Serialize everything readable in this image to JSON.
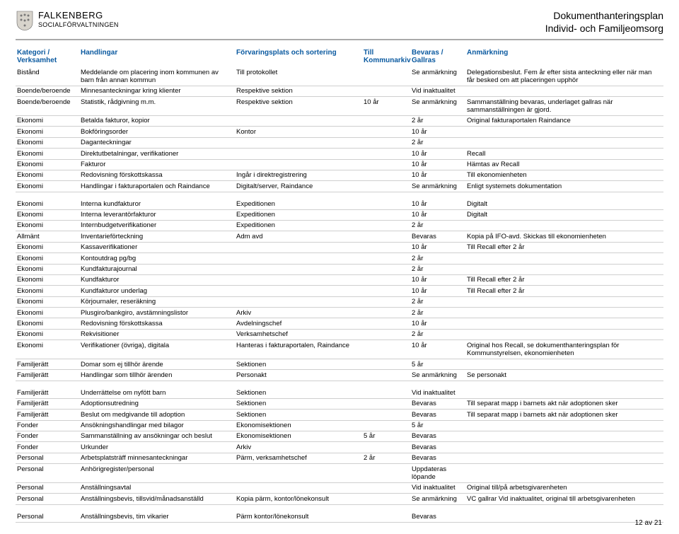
{
  "header": {
    "org_line1": "FALKENBERG",
    "org_line2": "SOCIALFÖRVALTNINGEN",
    "doc_title_line1": "Dokumenthanteringsplan",
    "doc_title_line2": "Individ- och Familjeomsorg"
  },
  "columns": {
    "c1a": "Kategori /",
    "c1b": "Verksamhet",
    "c2": "Handlingar",
    "c3": "Förvaringsplats och sortering",
    "c4a": "Till",
    "c4b": "Kommunarkiv",
    "c5a": "Bevaras /",
    "c5b": "Gallras",
    "c6": "Anmärkning"
  },
  "rows1": [
    {
      "c1": "Bistånd",
      "c2": "Meddelande om placering inom kommunen av barn från annan kommun",
      "c3": "Till protokollet",
      "c4": "",
      "c5": "Se anmärkning",
      "c6": "Delegationsbeslut. Fem år efter sista anteckning eller när man får besked om att placeringen upphör"
    },
    {
      "c1": "Boende/beroende",
      "c2": "Minnesanteckningar kring klienter",
      "c3": "Respektive sektion",
      "c4": "",
      "c5": "Vid inaktualitet",
      "c6": ""
    },
    {
      "c1": "Boende/beroende",
      "c2": "Statistik, rådgivning m.m.",
      "c3": "Respektive sektion",
      "c4": "10 år",
      "c5": "Se anmärkning",
      "c6": "Sammanställning bevaras, underlaget gallras när sammanställningen är gjord."
    },
    {
      "c1": "Ekonomi",
      "c2": "Betalda fakturor, kopior",
      "c3": "",
      "c4": "",
      "c5": "2 år",
      "c6": "Original fakturaportalen Raindance"
    },
    {
      "c1": "Ekonomi",
      "c2": "Bokföringsorder",
      "c3": "Kontor",
      "c4": "",
      "c5": "10 år",
      "c6": ""
    },
    {
      "c1": "Ekonomi",
      "c2": "Daganteckningar",
      "c3": "",
      "c4": "",
      "c5": "2 år",
      "c6": ""
    },
    {
      "c1": "Ekonomi",
      "c2": "Direktutbetalningar, verifikationer",
      "c3": "",
      "c4": "",
      "c5": "10 år",
      "c6": "Recall"
    },
    {
      "c1": "Ekonomi",
      "c2": "Fakturor",
      "c3": "",
      "c4": "",
      "c5": "10 år",
      "c6": "Hämtas av Recall"
    },
    {
      "c1": "Ekonomi",
      "c2": "Redovisning förskottskassa",
      "c3": "Ingår i direktregistrering",
      "c4": "",
      "c5": "10 år",
      "c6": "Till ekonomienheten"
    },
    {
      "c1": "Ekonomi",
      "c2": "Handlingar i fakturaportalen och Raindance",
      "c3": "Digitalt/server, Raindance",
      "c4": "",
      "c5": "Se anmärkning",
      "c6": "Enligt systemets dokumentation"
    }
  ],
  "rows2": [
    {
      "c1": "Ekonomi",
      "c2": "Interna kundfakturor",
      "c3": "Expeditionen",
      "c4": "",
      "c5": "10 år",
      "c6": "Digitalt"
    },
    {
      "c1": "Ekonomi",
      "c2": "Interna leverantörfakturor",
      "c3": "Expeditionen",
      "c4": "",
      "c5": "10 år",
      "c6": "Digitalt"
    },
    {
      "c1": "Ekonomi",
      "c2": "Internbudgetverifikationer",
      "c3": "Expeditionen",
      "c4": "",
      "c5": "2 år",
      "c6": ""
    },
    {
      "c1": "Allmänt",
      "c2": "Inventarieförteckning",
      "c3": "Adm avd",
      "c4": "",
      "c5": "Bevaras",
      "c6": "Kopia på IFO-avd. Skickas till ekonomienheten"
    },
    {
      "c1": "Ekonomi",
      "c2": "Kassaverifikationer",
      "c3": "",
      "c4": "",
      "c5": "10 år",
      "c6": "Till Recall efter 2 år"
    },
    {
      "c1": "Ekonomi",
      "c2": "Kontoutdrag pg/bg",
      "c3": "",
      "c4": "",
      "c5": "2 år",
      "c6": ""
    },
    {
      "c1": "Ekonomi",
      "c2": "Kundfakturajournal",
      "c3": "",
      "c4": "",
      "c5": "2 år",
      "c6": ""
    },
    {
      "c1": "Ekonomi",
      "c2": "Kundfakturor",
      "c3": "",
      "c4": "",
      "c5": "10 år",
      "c6": "Till Recall efter 2 år"
    },
    {
      "c1": "Ekonomi",
      "c2": "Kundfakturor underlag",
      "c3": "",
      "c4": "",
      "c5": "10 år",
      "c6": "Till Recall efter 2 år"
    },
    {
      "c1": "Ekonomi",
      "c2": "Körjournaler, reseräkning",
      "c3": "",
      "c4": "",
      "c5": "2 år",
      "c6": ""
    },
    {
      "c1": "Ekonomi",
      "c2": "Plusgiro/bankgiro, avstämningslistor",
      "c3": "Arkiv",
      "c4": "",
      "c5": "2 år",
      "c6": ""
    },
    {
      "c1": "Ekonomi",
      "c2": "Redovisning förskottskassa",
      "c3": "Avdelningschef",
      "c4": "",
      "c5": "10 år",
      "c6": ""
    },
    {
      "c1": "Ekonomi",
      "c2": "Rekvisitioner",
      "c3": "Verksamhetschef",
      "c4": "",
      "c5": "2 år",
      "c6": ""
    },
    {
      "c1": "Ekonomi",
      "c2": "Verifikationer (övriga), digitala",
      "c3": "Hanteras i fakturaportalen, Raindance",
      "c4": "",
      "c5": "10 år",
      "c6": "Original hos Recall, se dokumenthanteringsplan för Kommunstyrelsen, ekonomienheten"
    },
    {
      "c1": "Familjerätt",
      "c2": "Domar som ej tillhör ärende",
      "c3": "Sektionen",
      "c4": "",
      "c5": "5 år",
      "c6": ""
    },
    {
      "c1": "Familjerätt",
      "c2": "Handlingar som tillhör ärenden",
      "c3": "Personakt",
      "c4": "",
      "c5": "Se anmärkning",
      "c6": "Se personakt"
    }
  ],
  "rows3": [
    {
      "c1": "Familjerätt",
      "c2": "Underrättelse om nyfött barn",
      "c3": "Sektionen",
      "c4": "",
      "c5": "Vid inaktualitet",
      "c6": ""
    },
    {
      "c1": "Familjerätt",
      "c2": "Adoptionsutredning",
      "c3": "Sektionen",
      "c4": "",
      "c5": "Bevaras",
      "c6": "Till separat mapp i barnets akt när adoptionen sker"
    },
    {
      "c1": "Familjerätt",
      "c2": "Beslut om medgivande till adoption",
      "c3": "Sektionen",
      "c4": "",
      "c5": "Bevaras",
      "c6": "Till separat mapp i barnets akt när adoptionen sker"
    },
    {
      "c1": "Fonder",
      "c2": "Ansökningshandlingar med bilagor",
      "c3": "Ekonomisektionen",
      "c4": "",
      "c5": "5 år",
      "c6": ""
    },
    {
      "c1": "Fonder",
      "c2": "Sammanställning av ansökningar och beslut",
      "c3": "Ekonomisektionen",
      "c4": "5 år",
      "c5": "Bevaras",
      "c6": ""
    },
    {
      "c1": "Fonder",
      "c2": "Urkunder",
      "c3": "Arkiv",
      "c4": "",
      "c5": "Bevaras",
      "c6": ""
    },
    {
      "c1": "Personal",
      "c2": "Arbetsplatsträff minnesanteckningar",
      "c3": "Pärm, verksamhetschef",
      "c4": "2 år",
      "c5": "Bevaras",
      "c6": ""
    },
    {
      "c1": "Personal",
      "c2": "Anhörigregister/personal",
      "c3": "",
      "c4": "",
      "c5": "Uppdateras löpande",
      "c6": ""
    },
    {
      "c1": "Personal",
      "c2": "Anställningsavtal",
      "c3": "",
      "c4": "",
      "c5": "Vid inaktualitet",
      "c6": "Original till/på arbetsgivarenheten"
    },
    {
      "c1": "Personal",
      "c2": "Anställningsbevis, tillsvid/månadsanställd",
      "c3": "Kopia pärm, kontor/lönekonsult",
      "c4": "",
      "c5": "Se anmärkning",
      "c6": "VC gallrar Vid inaktualitet, original till arbetsgivarenheten"
    }
  ],
  "rows4": [
    {
      "c1": "Personal",
      "c2": "Anställningsbevis, tim vikarier",
      "c3": "Pärm kontor/lönekonsult",
      "c4": "",
      "c5": "Bevaras",
      "c6": ""
    }
  ],
  "page_num": "12 av 21"
}
